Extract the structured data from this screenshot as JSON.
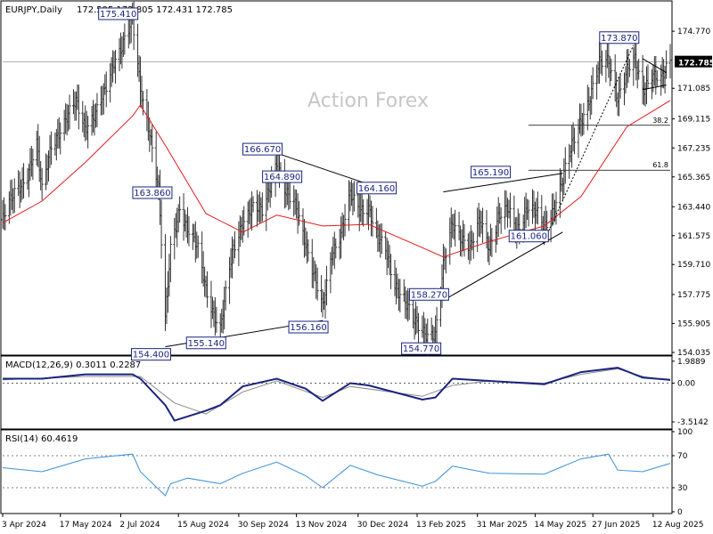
{
  "chart_data": {
    "type": "candlestick",
    "symbol": "EURJPY",
    "timeframe": "Daily",
    "ohlc": {
      "open": "172.595",
      "high": "172.805",
      "low": "172.431",
      "close": "172.785"
    },
    "last_price": "172.785",
    "watermark": "Action Forex",
    "main_panel": {
      "ylim": [
        154.035,
        176.5
      ],
      "y_ticks": [
        "174.770",
        "172.785",
        "171.085",
        "169.115",
        "167.235",
        "165.365",
        "163.440",
        "161.575",
        "159.710",
        "157.775",
        "155.905",
        "154.035"
      ],
      "fib_levels": [
        {
          "label": "38.2",
          "value": 168.7
        },
        {
          "label": "61.8",
          "value": 165.8
        }
      ],
      "annotations": [
        {
          "label": "175.410",
          "x": "2024-07-11",
          "y": 175.41
        },
        {
          "label": "163.860",
          "x": "2024-08-06",
          "y": 163.86
        },
        {
          "label": "154.400",
          "x": "2024-08-05",
          "y": 154.4
        },
        {
          "label": "155.140",
          "x": "2024-09-16",
          "y": 155.14
        },
        {
          "label": "166.670",
          "x": "2024-10-29",
          "y": 166.67
        },
        {
          "label": "164.890",
          "x": "2024-11-13",
          "y": 164.89
        },
        {
          "label": "156.160",
          "x": "2024-12-03",
          "y": 156.16
        },
        {
          "label": "164.160",
          "x": "2025-01-24",
          "y": 164.16
        },
        {
          "label": "154.770",
          "x": "2025-02-27",
          "y": 154.77
        },
        {
          "label": "158.270",
          "x": "2025-03-05",
          "y": 158.27
        },
        {
          "label": "165.190",
          "x": "2025-04-21",
          "y": 165.19
        },
        {
          "label": "161.060",
          "x": "2025-05-20",
          "y": 161.06
        },
        {
          "label": "173.870",
          "x": "2025-07-28",
          "y": 173.87
        }
      ],
      "price_path": [
        [
          "2024-04-03",
          162.6
        ],
        [
          "2024-04-12",
          164.3
        ],
        [
          "2024-04-22",
          165.6
        ],
        [
          "2024-04-29",
          167.4
        ],
        [
          "2024-05-03",
          164.4
        ],
        [
          "2024-05-10",
          167.5
        ],
        [
          "2024-05-20",
          168.8
        ],
        [
          "2024-05-29",
          170.2
        ],
        [
          "2024-06-05",
          168.7
        ],
        [
          "2024-06-13",
          169.4
        ],
        [
          "2024-06-20",
          170.8
        ],
        [
          "2024-06-27",
          172.9
        ],
        [
          "2024-07-03",
          173.9
        ],
        [
          "2024-07-11",
          175.4
        ],
        [
          "2024-07-17",
          171.0
        ],
        [
          "2024-07-24",
          168.4
        ],
        [
          "2024-07-31",
          164.5
        ],
        [
          "2024-08-05",
          156.0
        ],
        [
          "2024-08-09",
          160.7
        ],
        [
          "2024-08-16",
          163.5
        ],
        [
          "2024-08-22",
          162.0
        ],
        [
          "2024-08-30",
          160.6
        ],
        [
          "2024-09-05",
          158.2
        ],
        [
          "2024-09-11",
          156.6
        ],
        [
          "2024-09-16",
          155.5
        ],
        [
          "2024-09-25",
          160.4
        ],
        [
          "2024-10-03",
          162.6
        ],
        [
          "2024-10-10",
          163.3
        ],
        [
          "2024-10-18",
          163.1
        ],
        [
          "2024-10-25",
          165.2
        ],
        [
          "2024-10-29",
          166.4
        ],
        [
          "2024-11-05",
          164.2
        ],
        [
          "2024-11-13",
          163.4
        ],
        [
          "2024-11-20",
          161.2
        ],
        [
          "2024-11-27",
          158.8
        ],
        [
          "2024-12-03",
          156.8
        ],
        [
          "2024-12-10",
          160.5
        ],
        [
          "2024-12-17",
          161.8
        ],
        [
          "2024-12-24",
          164.1
        ],
        [
          "2024-12-31",
          163.2
        ],
        [
          "2025-01-07",
          163.5
        ],
        [
          "2025-01-14",
          161.4
        ],
        [
          "2025-01-20",
          160.5
        ],
        [
          "2025-01-27",
          158.5
        ],
        [
          "2025-02-03",
          157.6
        ],
        [
          "2025-02-10",
          156.0
        ],
        [
          "2025-02-17",
          155.4
        ],
        [
          "2025-02-27",
          155.2
        ],
        [
          "2025-03-05",
          159.5
        ],
        [
          "2025-03-12",
          162.4
        ],
        [
          "2025-03-19",
          161.5
        ],
        [
          "2025-03-26",
          160.8
        ],
        [
          "2025-04-02",
          162.5
        ],
        [
          "2025-04-09",
          160.9
        ],
        [
          "2025-04-16",
          162.8
        ],
        [
          "2025-04-23",
          163.2
        ],
        [
          "2025-04-30",
          161.9
        ],
        [
          "2025-05-08",
          163.5
        ],
        [
          "2025-05-15",
          163.0
        ],
        [
          "2025-05-21",
          162.0
        ],
        [
          "2025-05-28",
          163.4
        ],
        [
          "2025-06-04",
          165.2
        ],
        [
          "2025-06-11",
          167.3
        ],
        [
          "2025-06-18",
          169.1
        ],
        [
          "2025-06-25",
          170.6
        ],
        [
          "2025-07-02",
          172.6
        ],
        [
          "2025-07-09",
          172.8
        ],
        [
          "2025-07-16",
          170.6
        ],
        [
          "2025-07-23",
          172.2
        ],
        [
          "2025-07-29",
          172.8
        ],
        [
          "2025-08-04",
          171.0
        ],
        [
          "2025-08-11",
          172.1
        ],
        [
          "2025-08-18",
          171.5
        ],
        [
          "2025-08-25",
          172.785
        ]
      ],
      "ma_path": [
        [
          "2024-04-03",
          162.4
        ],
        [
          "2024-05-03",
          163.8
        ],
        [
          "2024-06-05",
          166.3
        ],
        [
          "2024-07-11",
          169.3
        ],
        [
          "2024-07-17",
          170.0
        ],
        [
          "2024-08-05",
          167.4
        ],
        [
          "2024-09-05",
          163.0
        ],
        [
          "2024-10-03",
          161.8
        ],
        [
          "2024-10-29",
          162.9
        ],
        [
          "2024-12-03",
          162.2
        ],
        [
          "2025-01-07",
          162.3
        ],
        [
          "2025-02-17",
          160.8
        ],
        [
          "2025-03-05",
          160.2
        ],
        [
          "2025-04-09",
          161.2
        ],
        [
          "2025-05-21",
          162.2
        ],
        [
          "2025-06-18",
          164.1
        ],
        [
          "2025-07-23",
          168.6
        ],
        [
          "2025-08-25",
          170.3
        ]
      ]
    },
    "macd_panel": {
      "label": "MACD(12,26,9) 0.3011 0.2287",
      "ylim": [
        -4.0,
        2.3
      ],
      "y_ticks": [
        "1.9889",
        "0.00",
        "-3.5142"
      ],
      "macd_path": [
        [
          "2024-04-03",
          0.4
        ],
        [
          "2024-05-03",
          0.4
        ],
        [
          "2024-06-05",
          0.8
        ],
        [
          "2024-07-11",
          0.8
        ],
        [
          "2024-07-17",
          0.4
        ],
        [
          "2024-08-05",
          -2.0
        ],
        [
          "2024-08-12",
          -3.4
        ],
        [
          "2024-09-05",
          -2.5
        ],
        [
          "2024-09-16",
          -2.0
        ],
        [
          "2024-10-03",
          -0.3
        ],
        [
          "2024-10-29",
          0.4
        ],
        [
          "2024-11-20",
          -0.5
        ],
        [
          "2024-12-03",
          -1.6
        ],
        [
          "2024-12-24",
          0.0
        ],
        [
          "2025-01-07",
          -0.2
        ],
        [
          "2025-02-17",
          -1.5
        ],
        [
          "2025-02-27",
          -1.3
        ],
        [
          "2025-03-12",
          0.4
        ],
        [
          "2025-04-09",
          0.2
        ],
        [
          "2025-05-21",
          -0.1
        ],
        [
          "2025-06-18",
          1.0
        ],
        [
          "2025-07-16",
          1.4
        ],
        [
          "2025-08-04",
          0.5
        ],
        [
          "2025-08-25",
          0.3
        ]
      ],
      "signal_path": [
        [
          "2024-04-03",
          0.3
        ],
        [
          "2024-06-05",
          0.6
        ],
        [
          "2024-07-17",
          0.6
        ],
        [
          "2024-08-12",
          -1.8
        ],
        [
          "2024-09-05",
          -2.8
        ],
        [
          "2024-10-03",
          -0.8
        ],
        [
          "2024-10-29",
          0.2
        ],
        [
          "2024-12-03",
          -1.3
        ],
        [
          "2024-12-24",
          -0.3
        ],
        [
          "2025-02-17",
          -1.2
        ],
        [
          "2025-03-12",
          -0.2
        ],
        [
          "2025-04-09",
          0.2
        ],
        [
          "2025-05-21",
          0.0
        ],
        [
          "2025-06-18",
          0.8
        ],
        [
          "2025-07-16",
          1.3
        ],
        [
          "2025-08-04",
          0.6
        ],
        [
          "2025-08-25",
          0.23
        ]
      ]
    },
    "rsi_panel": {
      "label": "RSI(14) 60.4619",
      "ylim": [
        0,
        100
      ],
      "y_ticks": [
        "100",
        "70",
        "30",
        "0"
      ],
      "rsi_path": [
        [
          "2024-04-03",
          55
        ],
        [
          "2024-05-03",
          50
        ],
        [
          "2024-06-05",
          66
        ],
        [
          "2024-07-11",
          72
        ],
        [
          "2024-07-17",
          50
        ],
        [
          "2024-08-05",
          20
        ],
        [
          "2024-08-09",
          35
        ],
        [
          "2024-08-22",
          42
        ],
        [
          "2024-09-16",
          35
        ],
        [
          "2024-10-03",
          48
        ],
        [
          "2024-10-29",
          62
        ],
        [
          "2024-11-20",
          45
        ],
        [
          "2024-12-03",
          30
        ],
        [
          "2024-12-24",
          58
        ],
        [
          "2025-01-14",
          46
        ],
        [
          "2025-02-17",
          32
        ],
        [
          "2025-02-27",
          38
        ],
        [
          "2025-03-12",
          57
        ],
        [
          "2025-04-09",
          48
        ],
        [
          "2025-05-21",
          47
        ],
        [
          "2025-06-18",
          66
        ],
        [
          "2025-07-09",
          72
        ],
        [
          "2025-07-16",
          52
        ],
        [
          "2025-08-04",
          50
        ],
        [
          "2025-08-25",
          60.4619
        ]
      ]
    },
    "x_ticks": [
      {
        "label": "3 Apr 2024",
        "date": "2024-04-03"
      },
      {
        "label": "17 May 2024",
        "date": "2024-05-17"
      },
      {
        "label": "2 Jul 2024",
        "date": "2024-07-02"
      },
      {
        "label": "15 Aug 2024",
        "date": "2024-08-15"
      },
      {
        "label": "30 Sep 2024",
        "date": "2024-09-30"
      },
      {
        "label": "13 Nov 2024",
        "date": "2024-11-13"
      },
      {
        "label": "30 Dec 2024",
        "date": "2024-12-30"
      },
      {
        "label": "13 Feb 2025",
        "date": "2025-02-13"
      },
      {
        "label": "31 Mar 2025",
        "date": "2025-03-31"
      },
      {
        "label": "14 May 2025",
        "date": "2025-05-14"
      },
      {
        "label": "27 Jun 2025",
        "date": "2025-06-27"
      },
      {
        "label": "12 Aug 2025",
        "date": "2025-08-12"
      }
    ],
    "trendlines": [
      {
        "name": "channel-top",
        "from": [
          "2024-10-29",
          166.9
        ],
        "to": [
          "2025-01-24",
          164.4
        ]
      },
      {
        "name": "base-line",
        "from": [
          "2024-08-05",
          154.4
        ],
        "to": [
          "2024-12-03",
          156.1
        ]
      },
      {
        "name": "wedge-top",
        "from": [
          "2025-03-05",
          164.4
        ],
        "to": [
          "2025-06-04",
          165.6
        ]
      },
      {
        "name": "wedge-bottom",
        "from": [
          "2025-03-05",
          157.4
        ],
        "to": [
          "2025-06-04",
          161.8
        ]
      },
      {
        "name": "triangle-top",
        "from": [
          "2025-08-04",
          173.0
        ],
        "to": [
          "2025-08-22",
          172.1
        ]
      },
      {
        "name": "triangle-bottom",
        "from": [
          "2025-08-04",
          171.0
        ],
        "to": [
          "2025-08-22",
          171.3
        ]
      }
    ],
    "dotted_lines": [
      {
        "name": "fib-anchor",
        "from": [
          "2025-05-20",
          161.06
        ],
        "to": [
          "2025-07-28",
          173.87
        ]
      }
    ],
    "colors": {
      "price": "#333333",
      "ma": "#e31a1c",
      "macd": "#1a237e",
      "signal": "#8a8a8a",
      "rsi": "#3a8fd6",
      "grid": "#bfbfbf",
      "watermark": "#c6c6c6",
      "label_box": "#1a237e"
    }
  }
}
